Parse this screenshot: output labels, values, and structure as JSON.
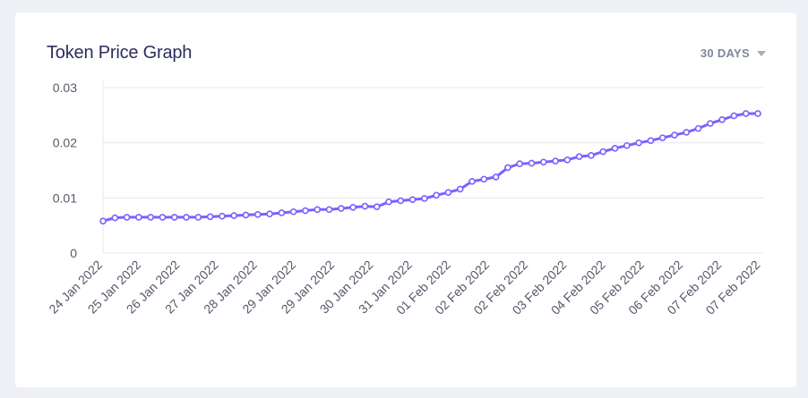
{
  "widget": {
    "title": "Token Price Graph",
    "range_label": "30 DAYS",
    "range_icon": "chevron-down-icon"
  },
  "chart_data": {
    "type": "line",
    "title": "Token Price Graph",
    "xlabel": "",
    "ylabel": "",
    "ylim": [
      0,
      0.03
    ],
    "yticks": [
      0,
      0.01,
      0.02,
      0.03
    ],
    "ytick_labels": [
      "0",
      "0.01",
      "0.02",
      "0.03"
    ],
    "grid": true,
    "legend": "none",
    "colors": {
      "line": "#7b61ff",
      "marker_fill": "#ffffff",
      "grid": "#e6e8ee",
      "axis_text": "#55596a"
    },
    "xtick_labels": [
      "24 Jan 2022",
      "25 Jan 2022",
      "26 Jan 2022",
      "27 Jan 2022",
      "28 Jan 2022",
      "29 Jan 2022",
      "29 Jan 2022",
      "30 Jan 2022",
      "31 Jan 2022",
      "01 Feb 2022",
      "02 Feb 2022",
      "02 Feb 2022",
      "03 Feb 2022",
      "04 Feb 2022",
      "05 Feb 2022",
      "06 Feb 2022",
      "07 Feb 2022",
      "07 Feb 2022"
    ],
    "series": [
      {
        "values": [
          0.0058,
          0.0064,
          0.0065,
          0.0065,
          0.0065,
          0.0065,
          0.0065,
          0.0065,
          0.0065,
          0.0066,
          0.0067,
          0.0068,
          0.0069,
          0.007,
          0.0071,
          0.0073,
          0.0075,
          0.0077,
          0.0079,
          0.0079,
          0.0081,
          0.0083,
          0.0085,
          0.0084,
          0.0093,
          0.0095,
          0.0097,
          0.0099,
          0.0105,
          0.011,
          0.0116,
          0.013,
          0.0134,
          0.0138,
          0.0155,
          0.0162,
          0.0163,
          0.0165,
          0.0167,
          0.0169,
          0.0175,
          0.0177,
          0.0184,
          0.019,
          0.0195,
          0.02,
          0.0204,
          0.0209,
          0.0214,
          0.0219,
          0.0226,
          0.0235,
          0.0242,
          0.0249,
          0.0253,
          0.0253
        ]
      }
    ]
  }
}
